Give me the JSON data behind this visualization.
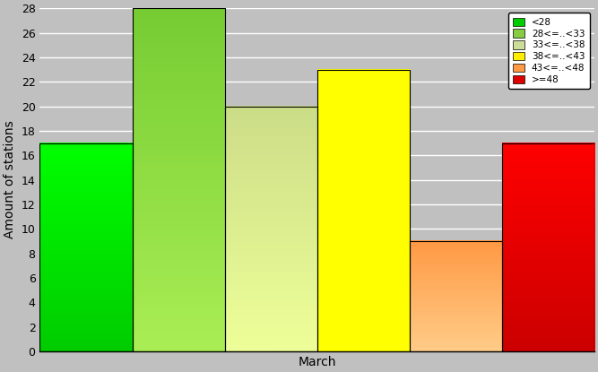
{
  "categories": [
    "<28",
    "28<=..<33",
    "33<=..<38",
    "38<=..<43",
    "43<=..<48",
    ">=48"
  ],
  "values": [
    17,
    28,
    20,
    23,
    9,
    17
  ],
  "bar_colors_top": [
    "#00ff00",
    "#77cc33",
    "#ccdd88",
    "#ffff00",
    "#ff9944",
    "#ff0000"
  ],
  "bar_colors_bottom": [
    "#00cc00",
    "#aaee55",
    "#eeff99",
    "#ffff00",
    "#ffcc88",
    "#cc0000"
  ],
  "legend_colors": [
    "#00cc00",
    "#88cc44",
    "#ccdd99",
    "#ffee00",
    "#ff9944",
    "#dd0000"
  ],
  "legend_labels": [
    "<28",
    "28<=..<33",
    "33<=..<38",
    "38<=..<43",
    "43<=..<48",
    ">=48"
  ],
  "xlabel": "March",
  "ylabel": "Amount of stations",
  "ylim": [
    0,
    28
  ],
  "yticks": [
    0,
    2,
    4,
    6,
    8,
    10,
    12,
    14,
    16,
    18,
    20,
    22,
    24,
    26,
    28
  ],
  "background_color": "#c0c0c0",
  "plot_bg_color": "#c0c0c0",
  "grid_color": "#ffffff",
  "legend_fontsize": 7.5,
  "axis_fontsize": 10,
  "tick_fontsize": 9,
  "xlabel_fontsize": 10
}
